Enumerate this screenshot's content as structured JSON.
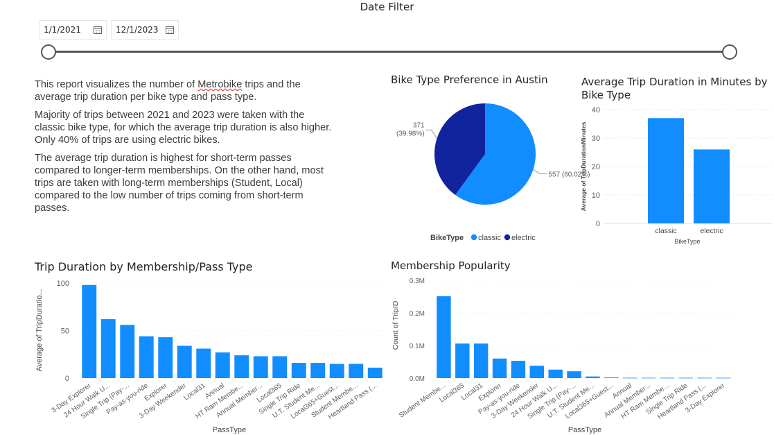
{
  "date_filter": {
    "title": "Date Filter",
    "start_date": "1/1/2021",
    "end_date": "12/1/2023"
  },
  "description": {
    "p1_before": "This report visualizes the number of ",
    "p1_brand": "Metrobike",
    "p1_after": " trips and the average trip duration per bike type and pass type.",
    "p2": "Majority of trips between 2021 and 2023 were taken with the classic bike type, for which the average trip duration is also higher. Only 40% of trips are using electric bikes.",
    "p3": "The average trip duration is highest for short-term passes compared to longer-term memberships. On the other hand, most trips are taken with long-term memberships (Student, Local) compared to the low number of trips coming from short-term passes."
  },
  "colors": {
    "classic": "#118DFF",
    "electric": "#12239E",
    "text": "#252423",
    "axis": "#605e5c"
  },
  "chart_data": [
    {
      "id": "pie",
      "type": "pie",
      "title": "Bike Type Preference in Austin",
      "legend_title": "BikeType",
      "legend_position": "bottom",
      "slices": [
        {
          "label": "classic",
          "value": 557,
          "percent_label": "557 (60.02%)"
        },
        {
          "label": "electric",
          "value": 371,
          "percent_label": "371 (39.98%)"
        }
      ]
    },
    {
      "id": "duration_by_bike",
      "type": "bar",
      "title": "Average Trip Duration in Minutes by Bike Type",
      "xlabel": "BikeType",
      "ylabel": "Average of TripDurationMinutes",
      "categories": [
        "classic",
        "electric"
      ],
      "values": [
        37,
        26
      ],
      "ylim": [
        0,
        40
      ],
      "yticks": [
        "0",
        "10",
        "20",
        "30",
        "40"
      ],
      "grid": true
    },
    {
      "id": "duration_by_pass",
      "type": "bar",
      "title": "Trip Duration by Membership/Pass Type",
      "xlabel": "PassType",
      "ylabel": "Average of TripDuratio...",
      "categories": [
        "3-Day Explorer",
        "24 Hour Walk U...",
        "Single Trip (Pay-...",
        "Pay-as-you-ride",
        "Explorer",
        "3-Day Weekender",
        "Local31",
        "Annual",
        "HT Ram Membe...",
        "Annual Member...",
        "Local365",
        "Single Trip Ride",
        "U.T. Student Me...",
        "Local365+Guest...",
        "Student Membe...",
        "Heartland Pass (..."
      ],
      "values": [
        98,
        62,
        56,
        44,
        43,
        34,
        31,
        27,
        24,
        23,
        23,
        16,
        16,
        15,
        15,
        11
      ],
      "ylim": [
        0,
        100
      ],
      "yticks": [
        "0",
        "50",
        "100"
      ],
      "grid": false
    },
    {
      "id": "membership_popularity",
      "type": "bar",
      "title": "Membership Popularity",
      "xlabel": "PassType",
      "ylabel": "Count of TripID",
      "categories": [
        "Student Membe...",
        "Local365",
        "Local31",
        "Explorer",
        "Pay-as-you-ride",
        "3-Day Weekender",
        "24 Hour Walk U...",
        "Single Trip (Pay-...",
        "U.T. Student Me...",
        "Local365+Guest...",
        "Annual",
        "Annual Member...",
        "HT Ram Membe...",
        "Single Trip Ride",
        "Heartland Pass (...",
        "3-Day Explorer"
      ],
      "values": [
        251000,
        106000,
        106000,
        60000,
        53000,
        38000,
        26000,
        21000,
        5000,
        2000,
        1000,
        1000,
        1000,
        1000,
        1000,
        1000
      ],
      "ylim": [
        0,
        300000
      ],
      "yticks": [
        "0.0M",
        "0.1M",
        "0.2M",
        "0.3M"
      ],
      "grid": false
    }
  ]
}
